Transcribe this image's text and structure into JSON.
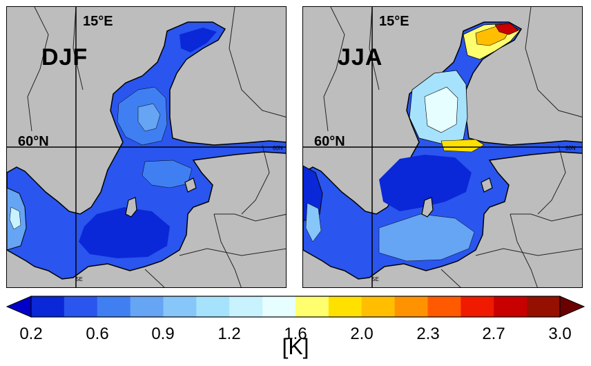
{
  "panels": [
    {
      "season": "DJF",
      "lon_label": "15°E",
      "lat_label": "60°N",
      "small_a": "60N",
      "small_b": "5E"
    },
    {
      "season": "JJA",
      "lon_label": "15°E",
      "lat_label": "60°N",
      "small_a": "60N",
      "small_b": "5E"
    }
  ],
  "colorbar": {
    "unit": "[K]",
    "tick_labels": [
      "0.2",
      "0.6",
      "0.9",
      "1.2",
      "1.6",
      "2.0",
      "2.3",
      "2.7",
      "3.0"
    ],
    "colors": [
      "#0a28d8",
      "#2a55ee",
      "#3f7ff2",
      "#66a4f4",
      "#87c6f8",
      "#a6e2fb",
      "#c8f2fd",
      "#e6feff",
      "#fffe6e",
      "#ffe100",
      "#ffbe00",
      "#ff9200",
      "#ff5a00",
      "#f01a00",
      "#c80000",
      "#951000"
    ],
    "under_color": "#0000c8",
    "over_color": "#6a0000"
  }
}
